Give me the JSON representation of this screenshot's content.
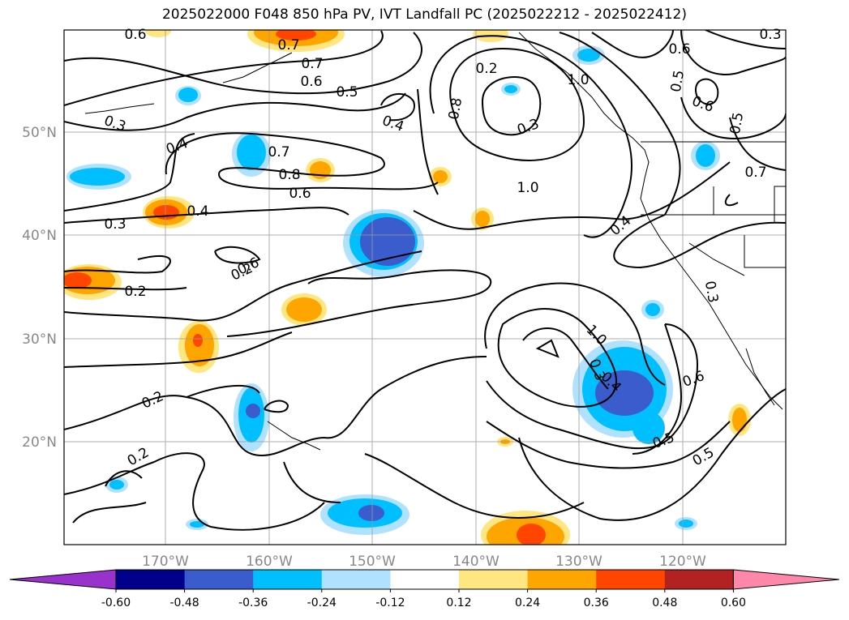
{
  "title": "2025022000 F048 850 hPa PV, IVT Landfall PC (2025022212 - 2025022412)",
  "lat_labels": [
    "50°N",
    "40°N",
    "30°N",
    "20°N"
  ],
  "lon_labels": [
    "170°W",
    "160°W",
    "150°W",
    "140°W",
    "130°W",
    "120°W"
  ],
  "colorbar": {
    "ticks": [
      "-0.60",
      "-0.48",
      "-0.36",
      "-0.24",
      "-0.12",
      "0.12",
      "0.24",
      "0.36",
      "0.48",
      "0.60"
    ],
    "colors": [
      "#9932cc",
      "#00008b",
      "#3a5ccc",
      "#00bfff",
      "#b0e2ff",
      "#ffffff",
      "#ffe680",
      "#ffa500",
      "#ff4500",
      "#b22222",
      "#ff88aa"
    ]
  },
  "contour_labels": [
    "0.6",
    "0.7",
    "0.7",
    "0.6",
    "0.5",
    "0.3",
    "0.4",
    "0.4",
    "0.7",
    "0.8",
    "0.6",
    "0.4",
    "0.3",
    "0.2",
    "0.3",
    "0.8",
    "1.0",
    "1.0",
    "0.6",
    "0.5",
    "0.7",
    "0.4",
    "0.6",
    "0.3",
    "0.5",
    "0.3",
    "1.0",
    "0.3",
    "0.4",
    "0.6",
    "0.5",
    "0.5",
    "0.6",
    "0.2",
    "0.2",
    "0.2",
    "0.2"
  ]
}
